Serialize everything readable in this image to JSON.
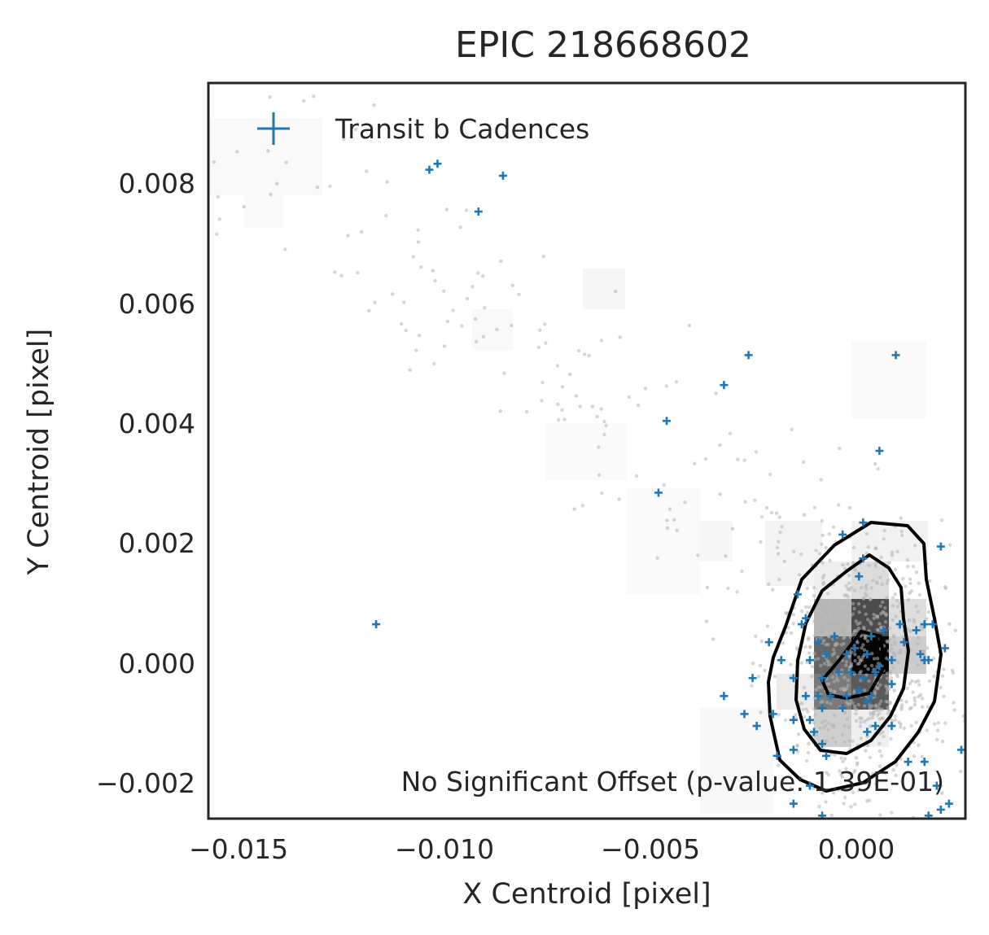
{
  "chart_data": {
    "type": "scatter",
    "title": "EPIC 218668602",
    "xlabel": "X Centroid [pixel]",
    "ylabel": "Y Centroid [pixel]",
    "xlim": [
      -0.0158,
      0.0027
    ],
    "ylim": [
      -0.00265,
      0.00965
    ],
    "x_ticks": [
      -0.015,
      -0.01,
      -0.005,
      0.0
    ],
    "x_tick_labels": [
      "−0.015",
      "−0.010",
      "−0.005",
      "0.000"
    ],
    "y_ticks": [
      -0.002,
      0.0,
      0.002,
      0.004,
      0.006,
      0.008
    ],
    "y_tick_labels": [
      "−0.002",
      "0.000",
      "0.002",
      "0.004",
      "0.006",
      "0.008"
    ],
    "grid": false,
    "legend": {
      "placement": "top-left",
      "entries": [
        {
          "label": "Transit b Cadences",
          "marker": "+",
          "color": "#1f77b4"
        }
      ]
    },
    "annotation": "No Significant Offset (p-value: 1.39E-01)",
    "colors": {
      "transit": "#1f77b4",
      "background_points": "#b3b3b3",
      "contour": "#000000",
      "frame": "#262626"
    },
    "series": [
      {
        "name": "Transit b Cadences",
        "marker": "+",
        "points": [
          [
            -0.0104,
            0.0082
          ],
          [
            -0.0102,
            0.0083
          ],
          [
            -0.0086,
            0.0081
          ],
          [
            -0.0092,
            0.0075
          ],
          [
            -0.0026,
            0.0051
          ],
          [
            0.001,
            0.0051
          ],
          [
            -0.0032,
            0.0046
          ],
          [
            -0.0046,
            0.004
          ],
          [
            0.0006,
            0.0035
          ],
          [
            -0.0048,
            0.0028
          ],
          [
            -0.0117,
            0.0006
          ],
          [
            0.0002,
            0.0023
          ],
          [
            -0.0003,
            0.0021
          ],
          [
            0.0021,
            0.0019
          ],
          [
            0.0002,
            0.0017
          ],
          [
            0.0001,
            0.0014
          ],
          [
            -0.0014,
            0.0011
          ],
          [
            -0.0012,
            0.0007
          ],
          [
            -0.0013,
            0.0006
          ],
          [
            0.0011,
            0.0006
          ],
          [
            0.0015,
            0.0005
          ],
          [
            0.0017,
            0.0006
          ],
          [
            0.0019,
            0.0006
          ],
          [
            0.0022,
            0.0002
          ],
          [
            -0.0021,
            0.0003
          ],
          [
            -0.0009,
            0.0003
          ],
          [
            -0.0005,
            0.0004
          ],
          [
            0.0004,
            0.0004
          ],
          [
            0.0007,
            0.0005
          ],
          [
            0.0012,
            0.0003
          ],
          [
            0.0016,
            0.0001
          ],
          [
            -0.0018,
            0.0
          ],
          [
            -0.0011,
            0.0
          ],
          [
            -0.0007,
            0.0001
          ],
          [
            -0.0002,
            0.0001
          ],
          [
            0.0,
            0.0002
          ],
          [
            0.0003,
            0.0001
          ],
          [
            0.0006,
            -0.0001
          ],
          [
            0.0009,
            0.0
          ],
          [
            0.0017,
            0.0
          ],
          [
            0.0018,
            0.0
          ],
          [
            -0.0015,
            -0.0003
          ],
          [
            -0.0008,
            -0.0003
          ],
          [
            -0.0004,
            -0.0002
          ],
          [
            -0.0001,
            -0.0002
          ],
          [
            0.0002,
            -0.0003
          ],
          [
            0.0005,
            -0.0002
          ],
          [
            0.0009,
            -0.0004
          ],
          [
            -0.0025,
            -0.0003
          ],
          [
            -0.0012,
            -0.0006
          ],
          [
            -0.0009,
            -0.0006
          ],
          [
            -0.0006,
            -0.0006
          ],
          [
            -0.0002,
            -0.0006
          ],
          [
            0.0001,
            -0.0005
          ],
          [
            0.0004,
            -0.0006
          ],
          [
            -0.0032,
            -0.0006
          ],
          [
            -0.0008,
            -0.0008
          ],
          [
            -0.0003,
            -0.0008
          ],
          [
            0.0003,
            -0.0007
          ],
          [
            -0.002,
            -0.0009
          ],
          [
            -0.0027,
            -0.0009
          ],
          [
            -0.0015,
            -0.001
          ],
          [
            -0.0011,
            -0.001
          ],
          [
            -0.0024,
            -0.0011
          ],
          [
            -0.001,
            -0.0012
          ],
          [
            0.0005,
            -0.0011
          ],
          [
            0.0009,
            -0.0011
          ],
          [
            0.0003,
            -0.0012
          ],
          [
            -0.0008,
            -0.0014
          ],
          [
            0.0013,
            -0.0017
          ],
          [
            0.0017,
            -0.0017
          ],
          [
            0.0026,
            -0.0015
          ],
          [
            -0.0015,
            -0.0015
          ],
          [
            -0.0007,
            -0.0016
          ],
          [
            0.002,
            -0.0021
          ],
          [
            -0.0011,
            -0.0021
          ],
          [
            0.0023,
            -0.0024
          ],
          [
            -0.0015,
            -0.0024
          ],
          [
            0.0021,
            -0.0025
          ],
          [
            -0.0008,
            -0.0026
          ],
          [
            0.0018,
            -0.0026
          ],
          [
            -0.0019,
            -0.0016
          ]
        ]
      }
    ]
  }
}
